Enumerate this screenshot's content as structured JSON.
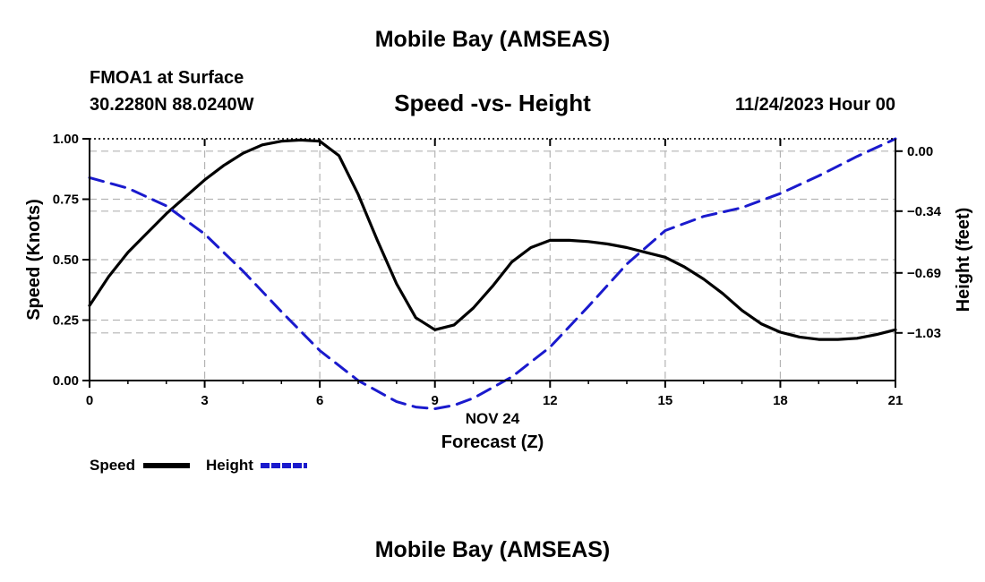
{
  "page": {
    "title": "Mobile Bay (AMSEAS)",
    "station": "FMOA1 at Surface",
    "coords": "30.2280N  88.0240W",
    "timestamp": "11/24/2023 Hour 00",
    "bottom_title": "Mobile Bay (AMSEAS)"
  },
  "chart_data": {
    "type": "line",
    "title": "Speed -vs- Height",
    "xlabel": "Forecast (Z)",
    "xlabel_date": "NOV 24",
    "ylabel_left": "Speed (Knots)",
    "ylabel_right": "Height (feet)",
    "xlim": [
      0,
      21
    ],
    "ylim_left": [
      0,
      1
    ],
    "ylim_right": [
      -1.3,
      0.07
    ],
    "grid": true,
    "x_ticks": [
      0,
      3,
      6,
      9,
      12,
      15,
      18,
      21
    ],
    "x_tick_labels": [
      "0",
      "3",
      "6",
      "9",
      "12",
      "15",
      "18",
      "21"
    ],
    "y_left_ticks": [
      0,
      0.25,
      0.5,
      0.75,
      1.0
    ],
    "y_left_tick_labels": [
      "0.00",
      "0.25",
      "0.50",
      "0.75",
      "1.00"
    ],
    "y_right_ticks": [
      0,
      -0.34,
      -0.69,
      -1.03
    ],
    "y_right_tick_labels": [
      "0.00",
      "−0.34",
      "−0.69",
      "−1.03"
    ],
    "legend": {
      "placement": "bottom-left",
      "entries": [
        {
          "label": "Speed",
          "color": "#000000",
          "style": "solid"
        },
        {
          "label": "Height",
          "color": "#1a1acd",
          "style": "dashed"
        }
      ]
    },
    "series": [
      {
        "name": "Speed",
        "axis": "left",
        "color": "#000000",
        "style": "solid",
        "x": [
          0,
          0.5,
          1,
          1.5,
          2,
          2.5,
          3,
          3.5,
          4,
          4.5,
          5,
          5.5,
          6,
          6.5,
          7,
          7.5,
          8,
          8.5,
          9,
          9.5,
          10,
          10.5,
          11,
          11.5,
          12,
          12.5,
          13,
          13.5,
          14,
          14.5,
          15,
          15.5,
          16,
          16.5,
          17,
          17.5,
          18,
          18.5,
          19,
          19.5,
          20,
          20.5,
          21
        ],
        "values": [
          0.31,
          0.43,
          0.53,
          0.61,
          0.69,
          0.76,
          0.83,
          0.89,
          0.94,
          0.975,
          0.99,
          0.995,
          0.99,
          0.93,
          0.77,
          0.58,
          0.4,
          0.26,
          0.21,
          0.23,
          0.3,
          0.39,
          0.49,
          0.55,
          0.58,
          0.58,
          0.575,
          0.565,
          0.55,
          0.53,
          0.51,
          0.47,
          0.42,
          0.36,
          0.29,
          0.235,
          0.2,
          0.18,
          0.17,
          0.17,
          0.175,
          0.19,
          0.21
        ]
      },
      {
        "name": "Height",
        "axis": "right",
        "color": "#1a1acd",
        "style": "dashed",
        "x": [
          0,
          1,
          2,
          3,
          4,
          5,
          6,
          7,
          8,
          8.5,
          9,
          9.5,
          10,
          11,
          12,
          13,
          14,
          15,
          16,
          17,
          18,
          19,
          20,
          21
        ],
        "values": [
          -0.15,
          -0.21,
          -0.31,
          -0.47,
          -0.68,
          -0.91,
          -1.13,
          -1.3,
          -1.42,
          -1.45,
          -1.46,
          -1.44,
          -1.4,
          -1.28,
          -1.11,
          -0.88,
          -0.64,
          -0.45,
          -0.37,
          -0.32,
          -0.24,
          -0.14,
          -0.03,
          0.07
        ]
      }
    ]
  }
}
